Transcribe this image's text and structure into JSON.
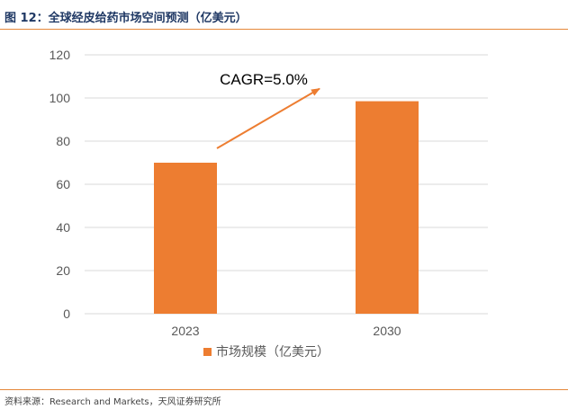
{
  "figure": {
    "title": "图 12：全球经皮给药市场空间预测（亿美元）",
    "source": "资料来源：Research and Markets，天风证券研究所"
  },
  "colors": {
    "bar": "#ed7d31",
    "arrow": "#ed7d31",
    "grid": "#d9d9d9",
    "rule": "#e5873a"
  },
  "chart_data": {
    "type": "bar",
    "categories": [
      "2023",
      "2030"
    ],
    "series": [
      {
        "name": "市场规模（亿美元）",
        "values": [
          70,
          98.5
        ]
      }
    ],
    "ylim": [
      0,
      120
    ],
    "yticks": [
      0,
      20,
      40,
      60,
      80,
      100,
      120
    ],
    "grid": true,
    "legend": "bottom",
    "annotation": "CAGR=5.0%"
  }
}
